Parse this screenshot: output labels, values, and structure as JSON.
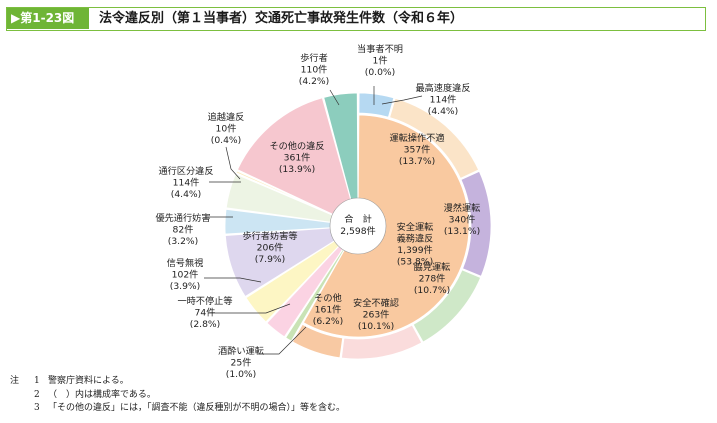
{
  "figure": {
    "tag": "第1-23図",
    "title": "法令違反別（第１当事者）交通死亡事故発生件数（令和６年）"
  },
  "chart_data": {
    "type": "pie",
    "subtype": "nested-donut",
    "center_label": [
      "合　計",
      "2,598件"
    ],
    "outer_ring": [
      {
        "name": "当事者不明",
        "count": "1件",
        "pct": "(0.0%)",
        "value": 1,
        "color": "#aad3ec",
        "group": "none"
      },
      {
        "name": "最高速度違反",
        "count": "114件",
        "pct": "(4.4%)",
        "value": 114,
        "color": "#b6d9f2",
        "group": "safe"
      },
      {
        "name": "運転操作不適",
        "count": "357件",
        "pct": "(13.7%)",
        "value": 357,
        "color": "#fbe4c8",
        "group": "safe"
      },
      {
        "name": "漫然運転",
        "count": "340件",
        "pct": "(13.1%)",
        "value": 340,
        "color": "#c5b3dd",
        "group": "safe"
      },
      {
        "name": "脇見運転",
        "count": "278件",
        "pct": "(10.7%)",
        "value": 278,
        "color": "#cfe8c8",
        "group": "safe"
      },
      {
        "name": "安全不確認",
        "count": "263件",
        "pct": "(10.1%)",
        "value": 263,
        "color": "#fadcdc",
        "group": "safe"
      },
      {
        "name": "その他",
        "count": "161件",
        "pct": "(6.2%)",
        "value": 161,
        "color": "#f8c9a3",
        "group": "safe"
      },
      {
        "name": "酒酔い運転",
        "count": "25件",
        "pct": "(1.0%)",
        "value": 25,
        "color": "#c9e3b5",
        "group": "other"
      },
      {
        "name": "一時不停止等",
        "count": "74件",
        "pct": "(2.8%)",
        "value": 74,
        "color": "#fbd3e3",
        "group": "other"
      },
      {
        "name": "信号無視",
        "count": "102件",
        "pct": "(3.9%)",
        "value": 102,
        "color": "#fdf6c4",
        "group": "other"
      },
      {
        "name": "歩行者妨害等",
        "count": "206件",
        "pct": "(7.9%)",
        "value": 206,
        "color": "#ded7ee",
        "group": "other"
      },
      {
        "name": "優先通行妨害",
        "count": "82件",
        "pct": "(3.2%)",
        "value": 82,
        "color": "#cce5f3",
        "group": "other"
      },
      {
        "name": "通行区分違反",
        "count": "114件",
        "pct": "(4.4%)",
        "value": 114,
        "color": "#edf4e4",
        "group": "other"
      },
      {
        "name": "追越違反",
        "count": "10件",
        "pct": "(0.4%)",
        "value": 10,
        "color": "#fce9b8",
        "group": "other"
      },
      {
        "name": "その他の違反",
        "count": "361件",
        "pct": "(13.9%)",
        "value": 361,
        "color": "#f6c7cf",
        "group": "other"
      },
      {
        "name": "歩行者",
        "count": "110件",
        "pct": "(4.2%)",
        "value": 110,
        "color": "#8ccdbd",
        "group": "ped"
      }
    ],
    "inner_group": {
      "name": "安全運転義務違反",
      "count": "1,399件",
      "pct": "(53.8%)",
      "value": 1399,
      "color": "#f9c9a0"
    }
  },
  "notes": {
    "head": "注",
    "items": [
      {
        "num": "1",
        "text": "警察庁資料による。"
      },
      {
        "num": "2",
        "text": "（　）内は構成率である。"
      },
      {
        "num": "3",
        "text": "「その他の違反」には，「調査不能（違反種別が不明の場合）」等を含む。"
      }
    ]
  }
}
